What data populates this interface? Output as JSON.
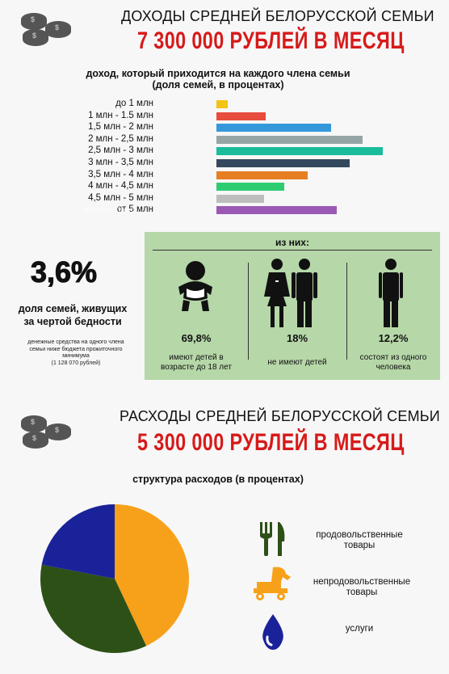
{
  "income": {
    "title": "ДОХОДЫ СРЕДНЕЙ БЕЛОРУССКОЙ СЕМЬИ",
    "headline": "7 300 000 РУБЛЕЙ В МЕСЯЦ",
    "subtitle_line1": "доход, который приходится на каждого члена семьи",
    "subtitle_line2": "(доля семей, в процентах)"
  },
  "chart_data": [
    {
      "type": "bar",
      "orientation": "horizontal",
      "title": "доход, который приходится на каждого члена семьи (доля семей, в процентах)",
      "categories": [
        "до 1 млн",
        "1 млн - 1.5 млн",
        "1,5 млн - 2 млн",
        "2 млн - 2,5 млн",
        "2,5 млн - 3 млн",
        "3 млн - 3,5 млн",
        "3,5 млн - 4 млн",
        "4 млн - 4,5 млн",
        "4,5 млн - 5 млн",
        "от 5 млн"
      ],
      "values": [
        0.6,
        2.7,
        6.3,
        8.0,
        9.1,
        7.3,
        5.0,
        3.7,
        2.6,
        6.6
      ],
      "colors": [
        "#f2c413",
        "#e74c3c",
        "#3498db",
        "#95a5a6",
        "#1abc9c",
        "#34495e",
        "#e67e22",
        "#2ecc71",
        "#bdbdbd",
        "#9b59b6"
      ],
      "xlim": [
        0,
        10
      ]
    },
    {
      "type": "pie",
      "title": "структура расходов (в процентах)",
      "labels": [
        "продовольственные товары",
        "непродовольственные товары",
        "услуги"
      ],
      "values": [
        43,
        35,
        22
      ],
      "colors": [
        "#f7a11a",
        "#2d5016",
        "#1a2299"
      ]
    }
  ],
  "poverty": {
    "percent": "3,6%",
    "label_line1": "доля семей, живущих",
    "label_line2": "за чертой бедности",
    "note_line1": "денежные средства на одного члена",
    "note_line2": "семьи ниже бюджета прожиточного",
    "note_line3": "минимума",
    "note_line4": "(1 128 070 рублей)"
  },
  "breakdown": {
    "header": "из них:",
    "items": [
      {
        "percent": "69,8%",
        "caption_line1": "имеют детей в",
        "caption_line2": "возрасте до 18 лет"
      },
      {
        "percent": "18%",
        "caption_line1": "не имеют детей",
        "caption_line2": ""
      },
      {
        "percent": "12,2%",
        "caption_line1": "состоят из одного",
        "caption_line2": "человека"
      }
    ]
  },
  "expenses": {
    "title": "РАСХОДЫ СРЕДНЕЙ БЕЛОРУССКОЙ СЕМЬИ",
    "headline": "5 300 000 РУБЛЕЙ В МЕСЯЦ",
    "subtitle": "структура расходов (в процентах)",
    "legend": [
      {
        "line1": "продовольственные",
        "line2": "товары",
        "icon": "fork-knife-icon"
      },
      {
        "line1": "непродовольственные",
        "line2": "товары",
        "icon": "trojan-horse-icon"
      },
      {
        "line1": "услуги",
        "line2": "",
        "icon": "drop-icon"
      }
    ]
  },
  "colors": {
    "accent_red": "#d71a1a",
    "box_green": "#b6d7a8",
    "icon_green": "#2d5016",
    "icon_orange": "#f7a11a",
    "icon_blue": "#1a2299"
  },
  "icons": [
    "coins-icon",
    "baby-icon",
    "couple-icon",
    "person-icon",
    "fork-knife-icon",
    "trojan-horse-icon",
    "drop-icon"
  ]
}
